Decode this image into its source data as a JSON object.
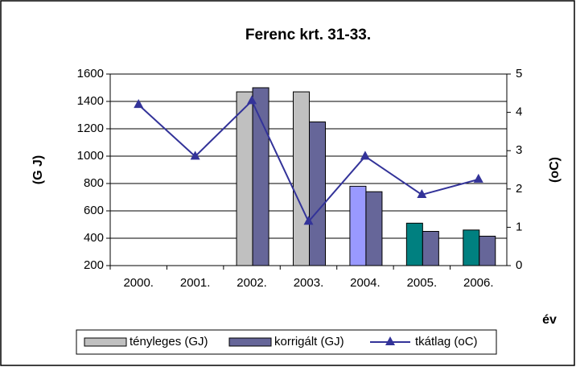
{
  "chart_data": {
    "type": "bar",
    "title": "Ferenc krt. 31-33.",
    "x_label": "év",
    "y_label": "(G J)",
    "y2_label": "(oC)",
    "categories": [
      "2000.",
      "2001.",
      "2002.",
      "2003.",
      "2004.",
      "2005.",
      "2006."
    ],
    "series": [
      {
        "name": "tényleges (GJ)",
        "color": "#c0c0c0",
        "point_colors": [
          null,
          null,
          "#c0c0c0",
          "#c0c0c0",
          "#9999ff",
          "#008080",
          "#008080"
        ],
        "values": [
          null,
          null,
          1470,
          1470,
          780,
          510,
          460
        ]
      },
      {
        "name": "korrigált (GJ)",
        "color": "#666699",
        "values": [
          null,
          null,
          1500,
          1250,
          740,
          450,
          415
        ]
      },
      {
        "name": "tkátlag (oC)",
        "type": "line",
        "axis": "y2",
        "color": "#333399",
        "values": [
          4.2,
          2.85,
          4.3,
          1.15,
          2.85,
          1.85,
          2.25
        ]
      }
    ],
    "ylim": [
      200,
      1600
    ],
    "yticks": [
      200,
      400,
      600,
      800,
      1000,
      1200,
      1400,
      1600
    ],
    "y2lim": [
      0,
      5
    ],
    "y2ticks": [
      0,
      1,
      2,
      3,
      4,
      5
    ],
    "grid": true,
    "legend": "bottom"
  }
}
